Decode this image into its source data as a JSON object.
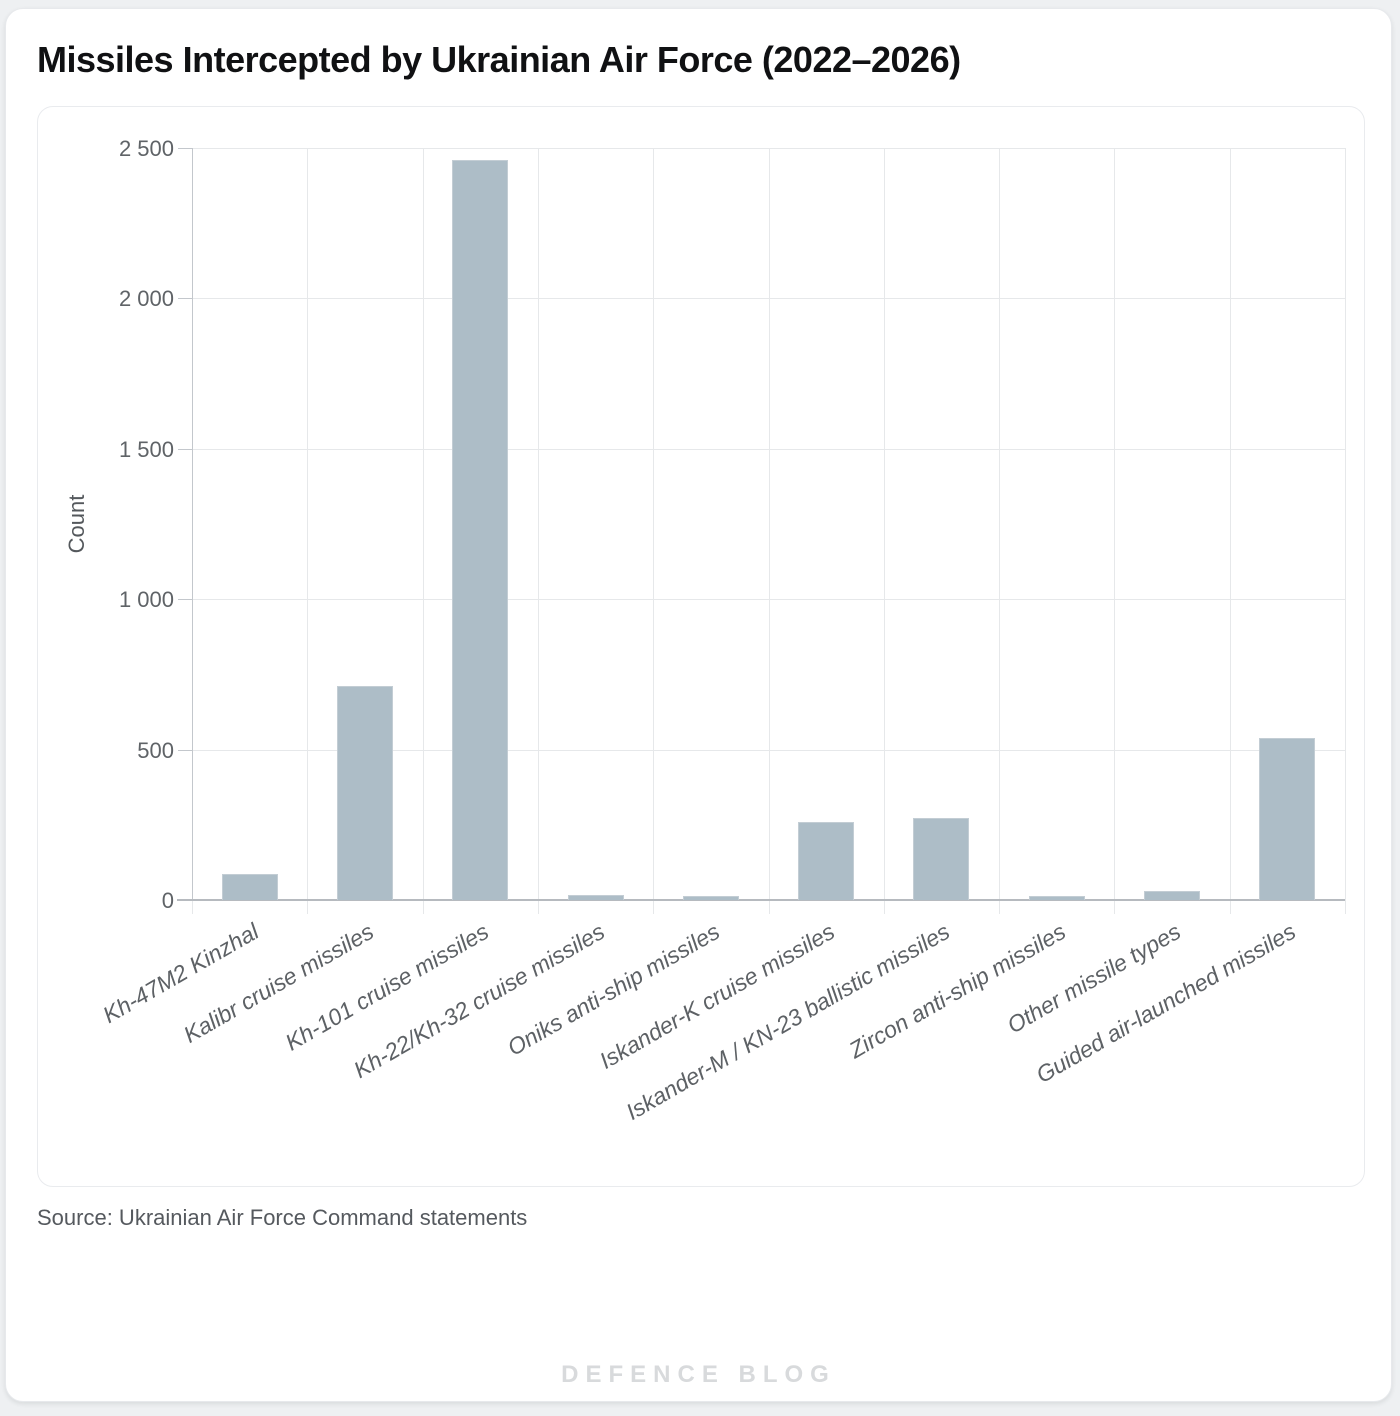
{
  "title": "Missiles Intercepted by Ukrainian Air Force (2022–2026)",
  "source_note": "Source: Ukrainian Air Force Command statements",
  "watermark": "DEFENCE BLOG",
  "colors": {
    "bar_fill": "#adbdc7",
    "bar_border": "#c3cdd4",
    "grid": "#e6e8ea",
    "axis": "#b6babf",
    "tick_label": "#5f6367",
    "watermark": "#d8dadc"
  },
  "chart_data": {
    "type": "bar",
    "title": "Missiles Intercepted by Ukrainian Air Force (2022–2026)",
    "xlabel": "",
    "ylabel": "Count",
    "ylim": [
      0,
      2500
    ],
    "ytick_values": [
      0,
      500,
      1000,
      1500,
      2000,
      2500
    ],
    "ytick_labels": [
      "0",
      "500",
      "1 000",
      "1 500",
      "2 000",
      "2 500"
    ],
    "grid": true,
    "legend": "none",
    "categories": [
      "Kh-47M2 Kinzhal",
      "Kalibr cruise missiles",
      "Kh-101 cruise missiles",
      "Kh-22/Kh-32 cruise missiles",
      "Oniks anti-ship missiles",
      "Iskander-K cruise missiles",
      "Iskander-M / KN-23 ballistic missiles",
      "Zircon anti-ship missiles",
      "Other missile types",
      "Guided air-launched missiles"
    ],
    "values": [
      85,
      710,
      2460,
      16,
      14,
      260,
      273,
      14,
      30,
      540
    ]
  }
}
